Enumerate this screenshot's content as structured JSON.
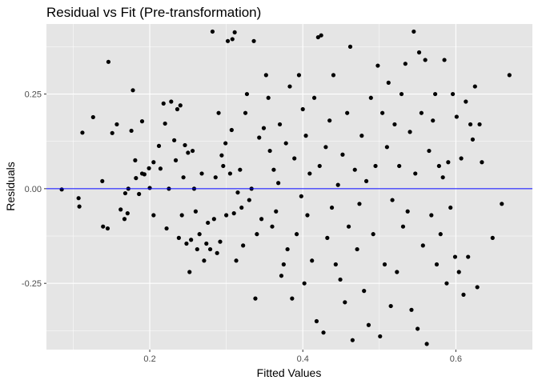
{
  "chart_data": {
    "type": "scatter",
    "title": "Residual vs Fit (Pre-transformation)",
    "xlabel": "Fitted Values",
    "ylabel": "Residuals",
    "xlim": [
      0.065,
      0.7
    ],
    "ylim": [
      -0.425,
      0.435
    ],
    "x_ticks": [
      0.2,
      0.4,
      0.6
    ],
    "x_tick_labels": [
      "0.2",
      "0.4",
      "0.6"
    ],
    "y_ticks": [
      -0.25,
      0.0,
      0.25
    ],
    "y_tick_labels": [
      "-0.25",
      "0.00",
      "0.25"
    ],
    "grid": true,
    "panel_background": "#e5e5e5",
    "grid_color": "#ffffff",
    "point_color": "#000000",
    "reference_line": {
      "y": 0,
      "color": "#0000ff"
    },
    "points": [
      [
        0.085,
        -0.002
      ],
      [
        0.107,
        -0.025
      ],
      [
        0.108,
        -0.047
      ],
      [
        0.112,
        0.148
      ],
      [
        0.126,
        0.189
      ],
      [
        0.138,
        0.02
      ],
      [
        0.139,
        -0.1
      ],
      [
        0.145,
        -0.105
      ],
      [
        0.146,
        0.335
      ],
      [
        0.151,
        0.147
      ],
      [
        0.157,
        0.17
      ],
      [
        0.162,
        -0.055
      ],
      [
        0.167,
        -0.08
      ],
      [
        0.168,
        -0.012
      ],
      [
        0.171,
        -0.065
      ],
      [
        0.172,
        0.0
      ],
      [
        0.176,
        0.153
      ],
      [
        0.178,
        0.26
      ],
      [
        0.181,
        0.075
      ],
      [
        0.182,
        0.028
      ],
      [
        0.186,
        -0.014
      ],
      [
        0.19,
        0.04
      ],
      [
        0.19,
        0.178
      ],
      [
        0.193,
        0.038
      ],
      [
        0.199,
        0.054
      ],
      [
        0.2,
        0.002
      ],
      [
        0.205,
        0.07
      ],
      [
        0.205,
        -0.07
      ],
      [
        0.212,
        0.113
      ],
      [
        0.214,
        0.053
      ],
      [
        0.218,
        0.225
      ],
      [
        0.22,
        0.172
      ],
      [
        0.222,
        -0.105
      ],
      [
        0.225,
        0.0
      ],
      [
        0.228,
        0.23
      ],
      [
        0.232,
        0.128
      ],
      [
        0.234,
        0.075
      ],
      [
        0.236,
        0.21
      ],
      [
        0.238,
        -0.13
      ],
      [
        0.24,
        0.22
      ],
      [
        0.242,
        -0.07
      ],
      [
        0.244,
        0.03
      ],
      [
        0.246,
        0.115
      ],
      [
        0.248,
        -0.145
      ],
      [
        0.25,
        0.095
      ],
      [
        0.252,
        -0.22
      ],
      [
        0.254,
        -0.135
      ],
      [
        0.256,
        0.1
      ],
      [
        0.258,
        0.0
      ],
      [
        0.26,
        -0.06
      ],
      [
        0.262,
        -0.16
      ],
      [
        0.265,
        -0.12
      ],
      [
        0.268,
        0.04
      ],
      [
        0.271,
        -0.19
      ],
      [
        0.274,
        -0.145
      ],
      [
        0.276,
        -0.09
      ],
      [
        0.279,
        -0.16
      ],
      [
        0.282,
        0.415
      ],
      [
        0.284,
        -0.08
      ],
      [
        0.286,
        0.03
      ],
      [
        0.288,
        -0.17
      ],
      [
        0.29,
        0.2
      ],
      [
        0.292,
        -0.14
      ],
      [
        0.294,
        0.088
      ],
      [
        0.296,
        0.06
      ],
      [
        0.299,
        0.12
      ],
      [
        0.3,
        -0.07
      ],
      [
        0.302,
        0.39
      ],
      [
        0.305,
        0.04
      ],
      [
        0.307,
        0.155
      ],
      [
        0.308,
        0.395
      ],
      [
        0.31,
        -0.065
      ],
      [
        0.311,
        0.413
      ],
      [
        0.313,
        -0.19
      ],
      [
        0.315,
        -0.01
      ],
      [
        0.318,
        0.05
      ],
      [
        0.32,
        -0.05
      ],
      [
        0.322,
        -0.15
      ],
      [
        0.325,
        0.2
      ],
      [
        0.327,
        0.25
      ],
      [
        0.33,
        -0.03
      ],
      [
        0.333,
        0.0
      ],
      [
        0.336,
        0.39
      ],
      [
        0.338,
        -0.29
      ],
      [
        0.34,
        -0.12
      ],
      [
        0.343,
        0.135
      ],
      [
        0.346,
        -0.08
      ],
      [
        0.349,
        0.16
      ],
      [
        0.352,
        0.3
      ],
      [
        0.355,
        0.24
      ],
      [
        0.357,
        0.1
      ],
      [
        0.36,
        -0.1
      ],
      [
        0.362,
        0.05
      ],
      [
        0.365,
        -0.06
      ],
      [
        0.368,
        0.015
      ],
      [
        0.37,
        0.17
      ],
      [
        0.372,
        -0.23
      ],
      [
        0.375,
        -0.2
      ],
      [
        0.378,
        0.12
      ],
      [
        0.38,
        -0.16
      ],
      [
        0.383,
        0.27
      ],
      [
        0.386,
        -0.29
      ],
      [
        0.389,
        0.08
      ],
      [
        0.392,
        -0.12
      ],
      [
        0.395,
        0.3
      ],
      [
        0.398,
        -0.02
      ],
      [
        0.4,
        0.21
      ],
      [
        0.402,
        -0.25
      ],
      [
        0.404,
        0.14
      ],
      [
        0.406,
        -0.07
      ],
      [
        0.409,
        0.04
      ],
      [
        0.412,
        -0.19
      ],
      [
        0.415,
        0.24
      ],
      [
        0.418,
        -0.35
      ],
      [
        0.42,
        0.4
      ],
      [
        0.422,
        0.06
      ],
      [
        0.424,
        0.405
      ],
      [
        0.427,
        -0.38
      ],
      [
        0.43,
        0.11
      ],
      [
        0.432,
        -0.13
      ],
      [
        0.435,
        0.18
      ],
      [
        0.438,
        -0.05
      ],
      [
        0.44,
        0.3
      ],
      [
        0.443,
        -0.2
      ],
      [
        0.446,
        0.01
      ],
      [
        0.449,
        -0.24
      ],
      [
        0.452,
        0.09
      ],
      [
        0.455,
        -0.3
      ],
      [
        0.458,
        0.2
      ],
      [
        0.46,
        -0.1
      ],
      [
        0.462,
        0.375
      ],
      [
        0.465,
        -0.4
      ],
      [
        0.468,
        0.05
      ],
      [
        0.471,
        -0.16
      ],
      [
        0.474,
        -0.04
      ],
      [
        0.477,
        0.14
      ],
      [
        0.48,
        -0.27
      ],
      [
        0.483,
        0.02
      ],
      [
        0.486,
        -0.36
      ],
      [
        0.489,
        0.24
      ],
      [
        0.492,
        -0.12
      ],
      [
        0.495,
        0.06
      ],
      [
        0.498,
        0.325
      ],
      [
        0.501,
        -0.39
      ],
      [
        0.504,
        0.2
      ],
      [
        0.507,
        -0.2
      ],
      [
        0.51,
        0.11
      ],
      [
        0.512,
        0.28
      ],
      [
        0.515,
        -0.31
      ],
      [
        0.517,
        -0.03
      ],
      [
        0.52,
        0.17
      ],
      [
        0.523,
        -0.22
      ],
      [
        0.526,
        0.06
      ],
      [
        0.529,
        0.25
      ],
      [
        0.531,
        -0.1
      ],
      [
        0.534,
        0.33
      ],
      [
        0.537,
        -0.06
      ],
      [
        0.54,
        0.15
      ],
      [
        0.542,
        -0.32
      ],
      [
        0.545,
        0.415
      ],
      [
        0.547,
        0.04
      ],
      [
        0.55,
        -0.37
      ],
      [
        0.552,
        0.36
      ],
      [
        0.555,
        0.2
      ],
      [
        0.557,
        -0.15
      ],
      [
        0.56,
        0.34
      ],
      [
        0.562,
        -0.41
      ],
      [
        0.565,
        0.1
      ],
      [
        0.568,
        -0.07
      ],
      [
        0.57,
        0.18
      ],
      [
        0.573,
        0.25
      ],
      [
        0.575,
        -0.2
      ],
      [
        0.578,
        0.06
      ],
      [
        0.58,
        -0.12
      ],
      [
        0.583,
        0.03
      ],
      [
        0.585,
        0.34
      ],
      [
        0.588,
        -0.25
      ],
      [
        0.59,
        0.07
      ],
      [
        0.593,
        -0.05
      ],
      [
        0.596,
        0.25
      ],
      [
        0.599,
        -0.18
      ],
      [
        0.601,
        0.19
      ],
      [
        0.604,
        -0.22
      ],
      [
        0.607,
        0.08
      ],
      [
        0.61,
        -0.28
      ],
      [
        0.613,
        0.23
      ],
      [
        0.616,
        -0.18
      ],
      [
        0.619,
        0.17
      ],
      [
        0.622,
        0.13
      ],
      [
        0.625,
        0.27
      ],
      [
        0.628,
        -0.26
      ],
      [
        0.631,
        0.17
      ],
      [
        0.634,
        0.07
      ],
      [
        0.648,
        -0.13
      ],
      [
        0.66,
        -0.04
      ],
      [
        0.67,
        0.3
      ]
    ]
  }
}
